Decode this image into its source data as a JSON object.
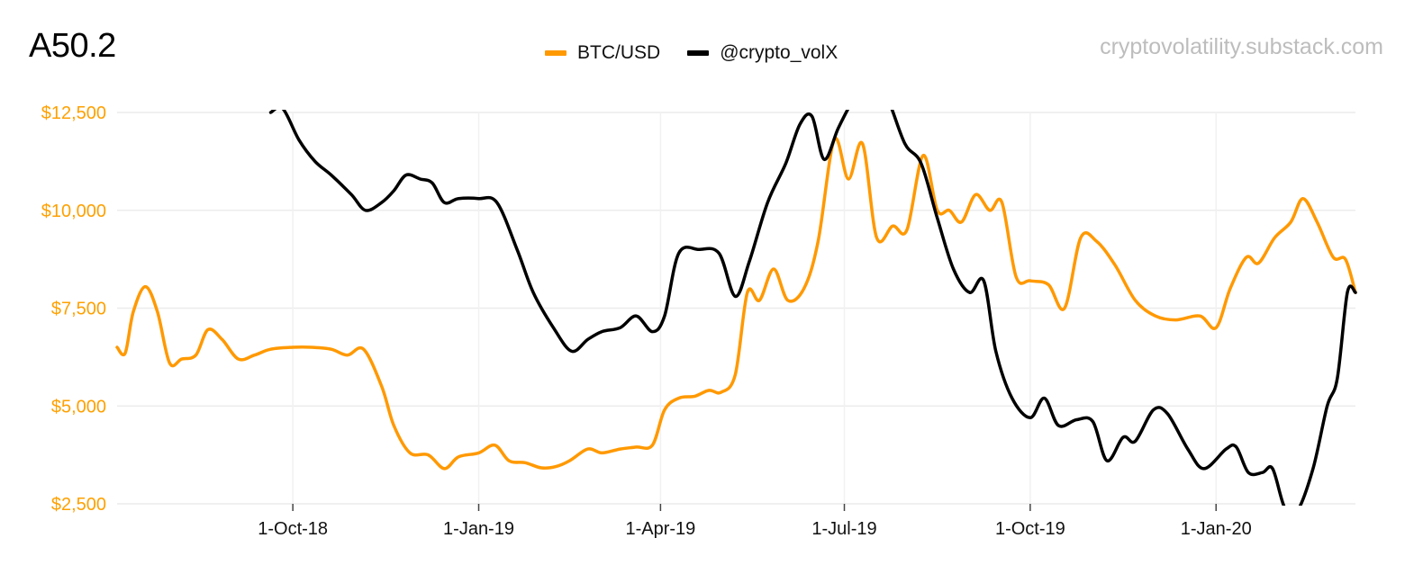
{
  "title": "A50.2",
  "watermark": "cryptovolatility.substack.com",
  "chart_data": {
    "type": "line",
    "ylim": [
      2500,
      12500
    ],
    "y_ticks": [
      2500,
      5000,
      7500,
      10000,
      12500
    ],
    "y_tick_labels": [
      "$2,500",
      "$5,000",
      "$7,500",
      "$10,000",
      "$12,500"
    ],
    "x_range": [
      "2018-07-06",
      "2020-03-10"
    ],
    "x_ticks": [
      "2018-10-01",
      "2019-01-01",
      "2019-04-01",
      "2019-07-01",
      "2019-10-01",
      "2020-01-01"
    ],
    "x_tick_labels": [
      "1-Oct-18",
      "1-Jan-19",
      "1-Apr-19",
      "1-Jul-19",
      "1-Oct-19",
      "1-Jan-20"
    ],
    "grid": true,
    "legend_position": "top-center",
    "series": [
      {
        "name": "BTC/USD",
        "color": "#ff9900",
        "points": [
          [
            "2018-07-06",
            6500
          ],
          [
            "2018-07-10",
            6350
          ],
          [
            "2018-07-14",
            7400
          ],
          [
            "2018-07-20",
            8050
          ],
          [
            "2018-07-26",
            7400
          ],
          [
            "2018-08-01",
            6100
          ],
          [
            "2018-08-07",
            6200
          ],
          [
            "2018-08-14",
            6300
          ],
          [
            "2018-08-20",
            6950
          ],
          [
            "2018-08-27",
            6700
          ],
          [
            "2018-09-04",
            6200
          ],
          [
            "2018-09-12",
            6300
          ],
          [
            "2018-09-20",
            6450
          ],
          [
            "2018-10-01",
            6500
          ],
          [
            "2018-10-10",
            6500
          ],
          [
            "2018-10-20",
            6450
          ],
          [
            "2018-10-28",
            6300
          ],
          [
            "2018-11-05",
            6450
          ],
          [
            "2018-11-14",
            5500
          ],
          [
            "2018-11-20",
            4500
          ],
          [
            "2018-11-28",
            3800
          ],
          [
            "2018-12-07",
            3750
          ],
          [
            "2018-12-15",
            3400
          ],
          [
            "2018-12-22",
            3700
          ],
          [
            "2019-01-01",
            3800
          ],
          [
            "2019-01-09",
            4000
          ],
          [
            "2019-01-16",
            3600
          ],
          [
            "2019-01-24",
            3550
          ],
          [
            "2019-02-01",
            3420
          ],
          [
            "2019-02-08",
            3450
          ],
          [
            "2019-02-15",
            3600
          ],
          [
            "2019-02-24",
            3900
          ],
          [
            "2019-03-03",
            3800
          ],
          [
            "2019-03-12",
            3900
          ],
          [
            "2019-03-20",
            3950
          ],
          [
            "2019-03-28",
            4000
          ],
          [
            "2019-04-03",
            4900
          ],
          [
            "2019-04-10",
            5200
          ],
          [
            "2019-04-18",
            5250
          ],
          [
            "2019-04-25",
            5400
          ],
          [
            "2019-05-01",
            5350
          ],
          [
            "2019-05-08",
            5800
          ],
          [
            "2019-05-14",
            7900
          ],
          [
            "2019-05-20",
            7700
          ],
          [
            "2019-05-27",
            8500
          ],
          [
            "2019-06-03",
            7700
          ],
          [
            "2019-06-11",
            8000
          ],
          [
            "2019-06-18",
            9200
          ],
          [
            "2019-06-26",
            11800
          ],
          [
            "2019-07-03",
            10800
          ],
          [
            "2019-07-10",
            11700
          ],
          [
            "2019-07-17",
            9300
          ],
          [
            "2019-07-25",
            9600
          ],
          [
            "2019-08-01",
            9500
          ],
          [
            "2019-08-09",
            11400
          ],
          [
            "2019-08-16",
            10000
          ],
          [
            "2019-08-22",
            10000
          ],
          [
            "2019-08-28",
            9700
          ],
          [
            "2019-09-04",
            10400
          ],
          [
            "2019-09-11",
            10000
          ],
          [
            "2019-09-17",
            10200
          ],
          [
            "2019-09-24",
            8300
          ],
          [
            "2019-10-01",
            8200
          ],
          [
            "2019-10-10",
            8100
          ],
          [
            "2019-10-18",
            7500
          ],
          [
            "2019-10-26",
            9300
          ],
          [
            "2019-11-03",
            9200
          ],
          [
            "2019-11-12",
            8600
          ],
          [
            "2019-11-22",
            7700
          ],
          [
            "2019-12-02",
            7300
          ],
          [
            "2019-12-12",
            7200
          ],
          [
            "2019-12-24",
            7300
          ],
          [
            "2020-01-01",
            7000
          ],
          [
            "2020-01-08",
            8000
          ],
          [
            "2020-01-16",
            8800
          ],
          [
            "2020-01-22",
            8650
          ],
          [
            "2020-01-30",
            9300
          ],
          [
            "2020-02-07",
            9700
          ],
          [
            "2020-02-13",
            10300
          ],
          [
            "2020-02-20",
            9700
          ],
          [
            "2020-02-28",
            8800
          ],
          [
            "2020-03-05",
            8750
          ],
          [
            "2020-03-10",
            7900
          ]
        ]
      },
      {
        "name": "@crypto_volX",
        "color": "#000000",
        "points": [
          [
            "2018-09-20",
            12500
          ],
          [
            "2018-09-26",
            12600
          ],
          [
            "2018-10-04",
            11800
          ],
          [
            "2018-10-12",
            11250
          ],
          [
            "2018-10-20",
            10900
          ],
          [
            "2018-10-30",
            10400
          ],
          [
            "2018-11-06",
            10000
          ],
          [
            "2018-11-14",
            10200
          ],
          [
            "2018-11-20",
            10500
          ],
          [
            "2018-11-26",
            10900
          ],
          [
            "2018-12-03",
            10800
          ],
          [
            "2018-12-09",
            10700
          ],
          [
            "2018-12-15",
            10200
          ],
          [
            "2018-12-22",
            10300
          ],
          [
            "2019-01-01",
            10300
          ],
          [
            "2019-01-10",
            10200
          ],
          [
            "2019-01-20",
            9000
          ],
          [
            "2019-01-28",
            7900
          ],
          [
            "2019-02-07",
            7000
          ],
          [
            "2019-02-16",
            6400
          ],
          [
            "2019-02-24",
            6700
          ],
          [
            "2019-03-03",
            6900
          ],
          [
            "2019-03-12",
            7000
          ],
          [
            "2019-03-20",
            7300
          ],
          [
            "2019-03-28",
            6900
          ],
          [
            "2019-04-03",
            7300
          ],
          [
            "2019-04-10",
            8900
          ],
          [
            "2019-04-20",
            9000
          ],
          [
            "2019-04-30",
            8900
          ],
          [
            "2019-05-08",
            7800
          ],
          [
            "2019-05-15",
            8700
          ],
          [
            "2019-05-24",
            10200
          ],
          [
            "2019-06-02",
            11200
          ],
          [
            "2019-06-09",
            12200
          ],
          [
            "2019-06-15",
            12400
          ],
          [
            "2019-06-21",
            11300
          ],
          [
            "2019-06-28",
            12100
          ],
          [
            "2019-07-05",
            12800
          ],
          [
            "2019-07-13",
            13500
          ],
          [
            "2019-07-22",
            12900
          ],
          [
            "2019-07-31",
            11700
          ],
          [
            "2019-08-08",
            11200
          ],
          [
            "2019-08-16",
            9800
          ],
          [
            "2019-08-24",
            8500
          ],
          [
            "2019-09-01",
            7900
          ],
          [
            "2019-09-08",
            8200
          ],
          [
            "2019-09-14",
            6400
          ],
          [
            "2019-09-22",
            5200
          ],
          [
            "2019-10-01",
            4700
          ],
          [
            "2019-10-08",
            5200
          ],
          [
            "2019-10-15",
            4500
          ],
          [
            "2019-10-24",
            4650
          ],
          [
            "2019-11-01",
            4600
          ],
          [
            "2019-11-08",
            3600
          ],
          [
            "2019-11-16",
            4200
          ],
          [
            "2019-11-22",
            4100
          ],
          [
            "2019-12-01",
            4900
          ],
          [
            "2019-12-08",
            4800
          ],
          [
            "2019-12-18",
            3900
          ],
          [
            "2019-12-26",
            3400
          ],
          [
            "2020-01-06",
            3900
          ],
          [
            "2020-01-11",
            3950
          ],
          [
            "2020-01-17",
            3300
          ],
          [
            "2020-01-24",
            3300
          ],
          [
            "2020-01-29",
            3400
          ],
          [
            "2020-02-04",
            2400
          ],
          [
            "2020-02-10",
            2300
          ],
          [
            "2020-02-18",
            3400
          ],
          [
            "2020-02-25",
            5000
          ],
          [
            "2020-03-01",
            5700
          ],
          [
            "2020-03-06",
            7900
          ],
          [
            "2020-03-10",
            7900
          ]
        ]
      }
    ]
  }
}
